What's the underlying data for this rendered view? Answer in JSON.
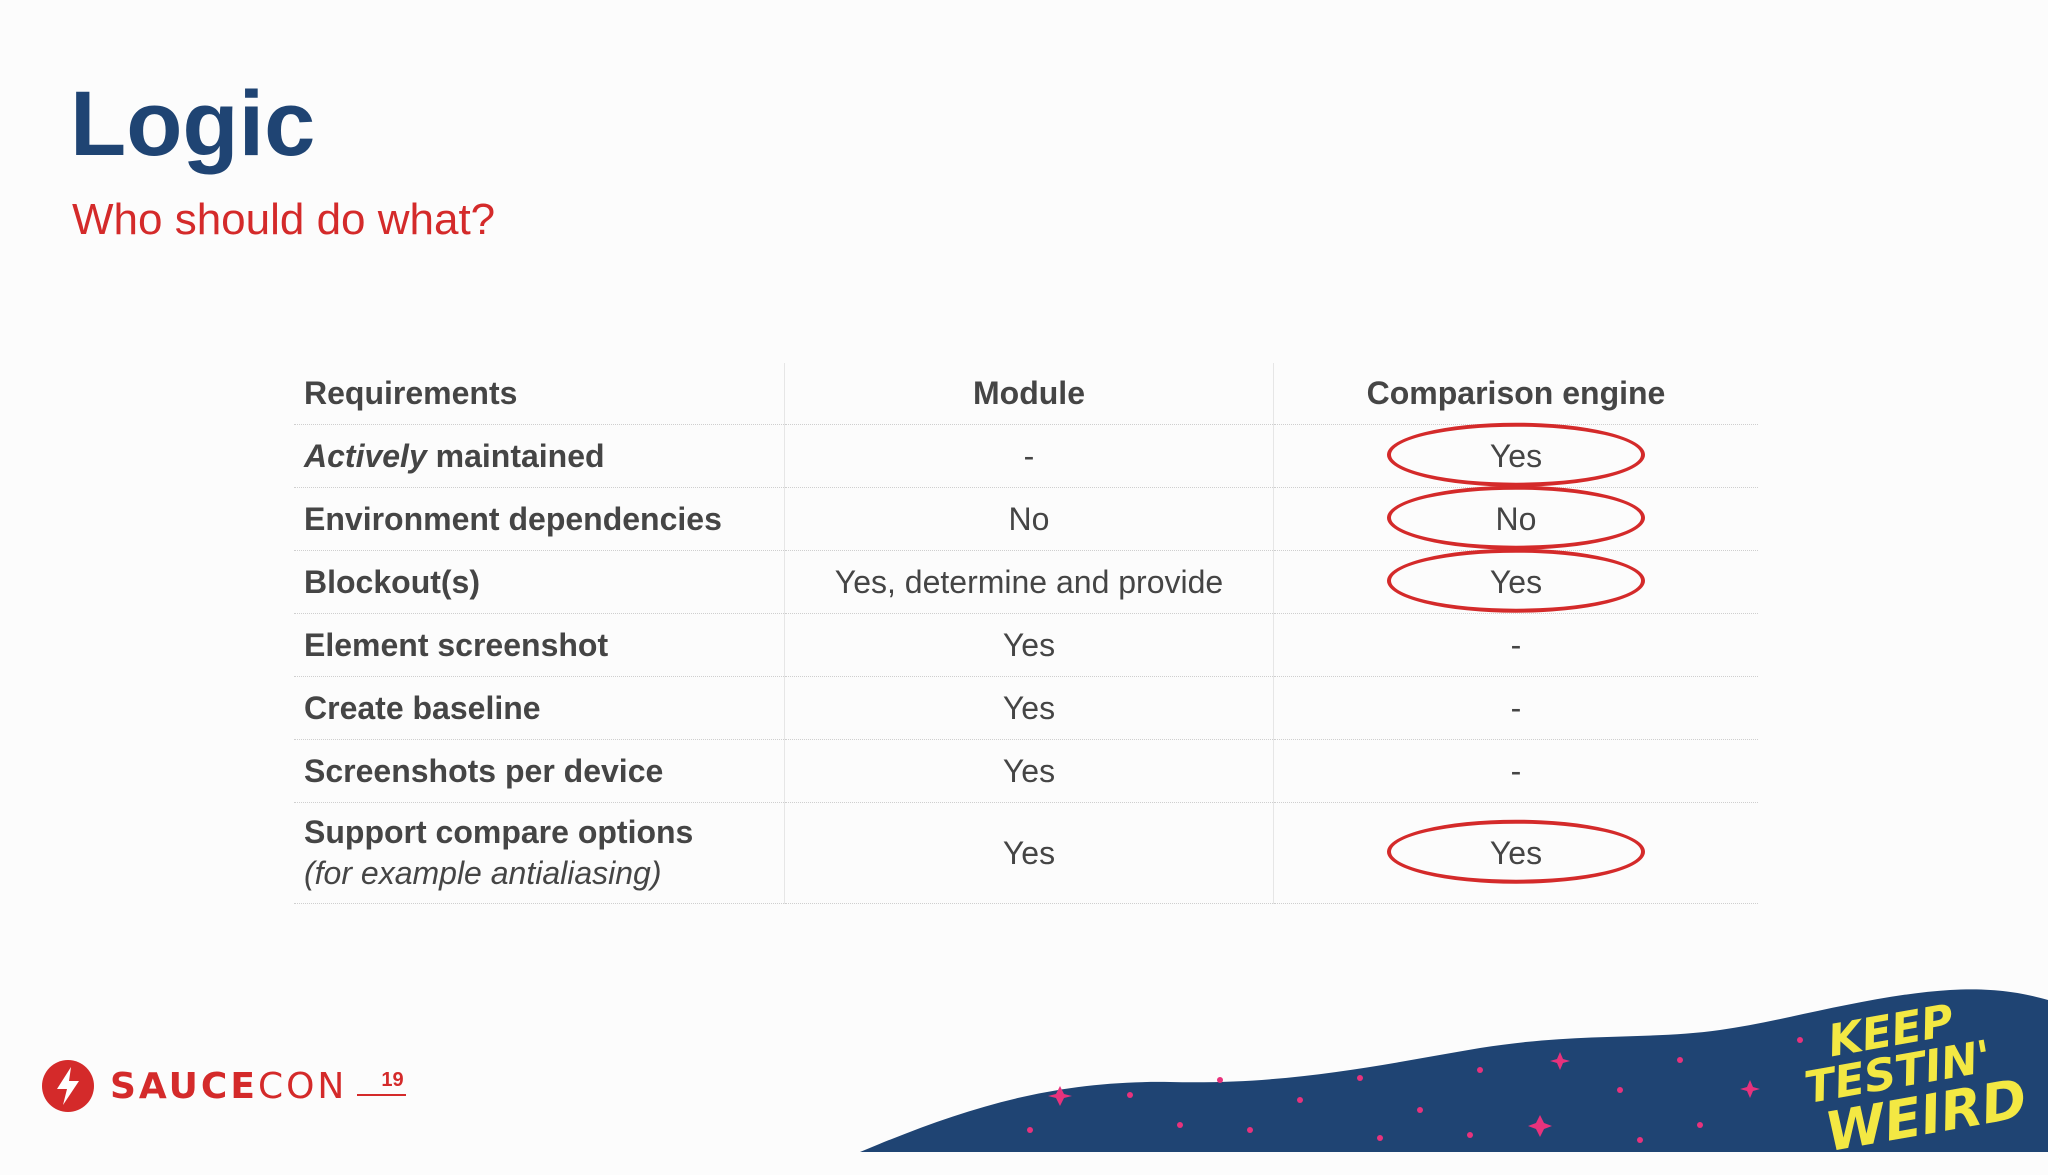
{
  "slide": {
    "title": "Logic",
    "subtitle": "Who should do what?"
  },
  "table": {
    "headers": {
      "requirements": "Requirements",
      "module": "Module",
      "engine": "Comparison engine"
    },
    "rows": [
      {
        "req_em": "Actively",
        "req": " maintained",
        "module": "-",
        "engine": "Yes",
        "circled": true
      },
      {
        "req": "Environment dependencies",
        "module": "No",
        "engine": "No",
        "circled": true
      },
      {
        "req": "Blockout(s)",
        "module": "Yes, determine and provide",
        "engine": "Yes",
        "circled": true
      },
      {
        "req": "Element screenshot",
        "module": "Yes",
        "engine": "-",
        "circled": false
      },
      {
        "req": "Create baseline",
        "module": "Yes",
        "engine": "-",
        "circled": false
      },
      {
        "req": "Screenshots per device",
        "module": "Yes",
        "engine": "-",
        "circled": false
      },
      {
        "req": "Support compare options",
        "req_note": "(for example antialiasing)",
        "module": "Yes",
        "engine": "Yes",
        "circled": true
      }
    ]
  },
  "branding": {
    "logo_sauce": "SAUCE",
    "logo_con": "CON",
    "logo_year": "19",
    "slogan_line1": "KEEP TESTIN'",
    "slogan_line2": "WEIRD",
    "colors": {
      "title": "#1f4473",
      "accent": "#d42a2a",
      "wave": "#1f4473",
      "slogan": "#f3e843"
    }
  }
}
